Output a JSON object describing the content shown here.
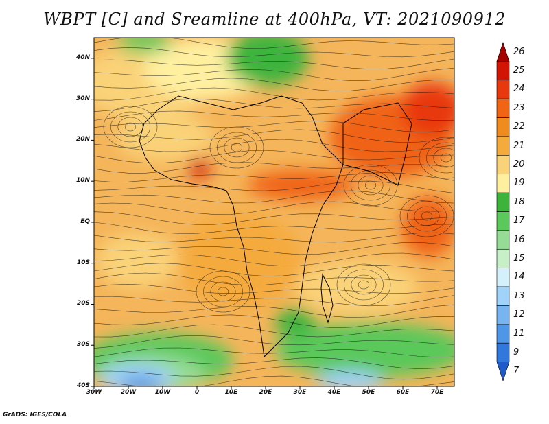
{
  "title": "WBPT [C] and Sreamline at 400hPa, VT: 2021090912",
  "credit": "GrADS: IGES/COLA",
  "map": {
    "lon_range": [
      -30,
      75
    ],
    "lat_range": [
      -40,
      45
    ],
    "lat_ticks": [
      {
        "value": 40,
        "label": "40N"
      },
      {
        "value": 30,
        "label": "30N"
      },
      {
        "value": 20,
        "label": "20N"
      },
      {
        "value": 10,
        "label": "10N"
      },
      {
        "value": 0,
        "label": "EQ"
      },
      {
        "value": -10,
        "label": "10S"
      },
      {
        "value": -20,
        "label": "20S"
      },
      {
        "value": -30,
        "label": "30S"
      },
      {
        "value": -40,
        "label": "40S"
      }
    ],
    "lon_ticks": [
      {
        "value": -30,
        "label": "30W"
      },
      {
        "value": -20,
        "label": "20W"
      },
      {
        "value": -10,
        "label": "10W"
      },
      {
        "value": 0,
        "label": "0"
      },
      {
        "value": 10,
        "label": "10E"
      },
      {
        "value": 20,
        "label": "20E"
      },
      {
        "value": 30,
        "label": "30E"
      },
      {
        "value": 40,
        "label": "40E"
      },
      {
        "value": 50,
        "label": "50E"
      },
      {
        "value": 60,
        "label": "60E"
      },
      {
        "value": 70,
        "label": "70E"
      }
    ]
  },
  "colorbar": {
    "levels": [
      "26",
      "25",
      "24",
      "23",
      "22",
      "21",
      "20",
      "19",
      "18",
      "17",
      "16",
      "15",
      "14",
      "13",
      "12",
      "11",
      "9",
      "7"
    ],
    "colors": [
      "#a50000",
      "#d21405",
      "#e8390e",
      "#f06414",
      "#f08c1e",
      "#f5aa3c",
      "#fad278",
      "#fff0a0",
      "#3cb43c",
      "#5ac85a",
      "#96dc96",
      "#c8f0c8",
      "#d4f0fa",
      "#a0d2fa",
      "#78b4f0",
      "#5096e6",
      "#3278dc",
      "#1e5ac8"
    ]
  }
}
